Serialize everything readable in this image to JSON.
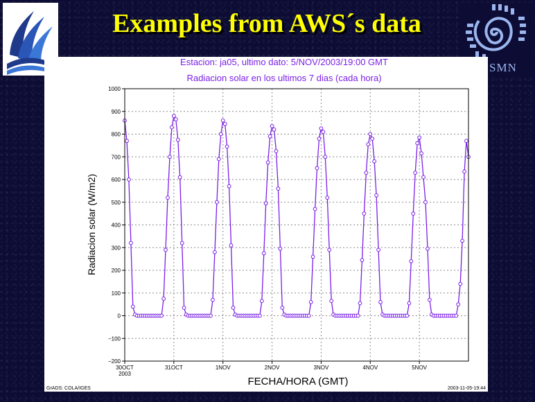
{
  "slide": {
    "title": "Examples from AWS´s data",
    "logo_right_text": "SMN"
  },
  "plot": {
    "header_line1": "Estacion: ja05, ultimo dato: 5/NOV/2003/19:00 GMT",
    "header_line2": "Radiacion solar en los ultimos 7 dias (cada hora)",
    "footer_left": "GrADS: COLA/IGES",
    "footer_right": "2003-11-05-19:44"
  },
  "colors": {
    "title": "#ffff00",
    "series": "#7a1fe6",
    "background": "#0c0c34"
  },
  "chart_data": {
    "type": "line",
    "title": "Radiacion solar en los ultimos 7 dias (cada hora)",
    "xlabel": "FECHA/HORA (GMT)",
    "ylabel": "Radiacion solar (W/m2)",
    "ylim": [
      -200,
      1000
    ],
    "yticks": [
      -200,
      -100,
      0,
      100,
      200,
      300,
      400,
      500,
      600,
      700,
      800,
      900,
      1000
    ],
    "ytick_labels": [
      "−200",
      "−100",
      "0",
      "100",
      "200",
      "300",
      "400",
      "500",
      "600",
      "700",
      "800",
      "900",
      "1000"
    ],
    "x_range_hours": [
      0,
      168
    ],
    "xticks": [
      {
        "hour": 0,
        "label": "30OCT",
        "sublabel": "2003"
      },
      {
        "hour": 24,
        "label": "31OCT",
        "sublabel": ""
      },
      {
        "hour": 48,
        "label": "1NOV",
        "sublabel": ""
      },
      {
        "hour": 72,
        "label": "2NOV",
        "sublabel": ""
      },
      {
        "hour": 96,
        "label": "3NOV",
        "sublabel": ""
      },
      {
        "hour": 120,
        "label": "4NOV",
        "sublabel": ""
      },
      {
        "hour": 144,
        "label": "5NOV",
        "sublabel": ""
      }
    ],
    "grid": true,
    "marker": "circle",
    "series": [
      {
        "values": [
          860,
          770,
          600,
          320,
          40,
          5,
          0,
          0,
          0,
          0,
          0,
          0,
          0,
          0,
          0,
          0,
          0,
          0,
          0,
          75,
          290,
          520,
          700,
          830,
          880,
          865,
          775,
          610,
          320,
          35,
          5,
          0,
          0,
          0,
          0,
          0,
          0,
          0,
          0,
          0,
          0,
          0,
          0,
          70,
          280,
          500,
          690,
          800,
          860,
          845,
          745,
          570,
          310,
          35,
          5,
          0,
          0,
          0,
          0,
          0,
          0,
          0,
          0,
          0,
          0,
          0,
          0,
          65,
          275,
          495,
          675,
          790,
          835,
          820,
          725,
          560,
          295,
          35,
          5,
          0,
          0,
          0,
          0,
          0,
          0,
          0,
          0,
          0,
          0,
          0,
          0,
          60,
          260,
          470,
          650,
          780,
          825,
          810,
          700,
          520,
          290,
          65,
          5,
          0,
          0,
          0,
          0,
          0,
          0,
          0,
          0,
          0,
          0,
          0,
          0,
          55,
          245,
          450,
          630,
          755,
          800,
          780,
          680,
          530,
          290,
          60,
          5,
          0,
          0,
          0,
          0,
          0,
          0,
          0,
          0,
          0,
          0,
          0,
          0,
          55,
          240,
          450,
          630,
          760,
          785,
          715,
          610,
          500,
          295,
          70,
          5,
          0,
          0,
          0,
          0,
          0,
          0,
          0,
          0,
          0,
          0,
          0,
          0,
          50,
          140,
          330,
          635,
          770,
          700
        ]
      }
    ]
  }
}
